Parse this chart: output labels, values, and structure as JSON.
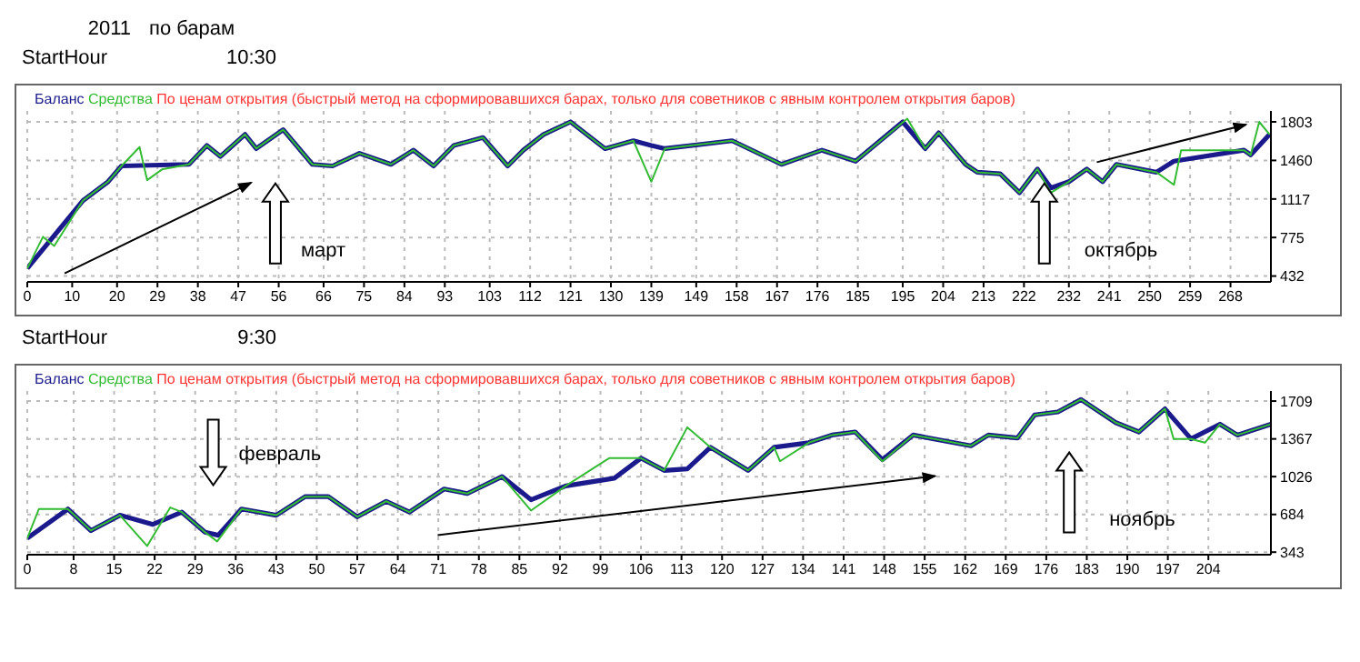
{
  "chart_data": [
    {
      "type": "line",
      "subtitle": "По ценам открытия (быстрый метод на сформировавшихся барах, только для советников с явным контролем открытия баров)",
      "xlim": [
        0,
        277
      ],
      "xticks": [
        0,
        10,
        20,
        29,
        38,
        47,
        56,
        66,
        75,
        84,
        93,
        103,
        112,
        121,
        130,
        139,
        149,
        158,
        167,
        176,
        185,
        195,
        204,
        213,
        222,
        232,
        241,
        250,
        259,
        268
      ],
      "ylim": [
        380,
        1900
      ],
      "yticks": [
        432,
        775,
        1117,
        1460,
        1803
      ],
      "grid": true,
      "legend": "top left",
      "line_style": "solid",
      "marker": "none",
      "series": [
        {
          "name": "Баланс",
          "color": "#1a1a8c",
          "x": [
            0,
            12.4,
            18,
            21,
            36,
            40,
            43,
            48.5,
            51,
            57,
            63.5,
            68,
            74,
            81,
            86,
            90.5,
            95,
            101.5,
            107,
            110.5,
            115,
            121,
            128.7,
            135,
            139,
            142,
            157,
            168,
            177,
            184.5,
            195,
            200,
            203,
            209,
            211.6,
            216.7,
            221,
            225,
            228,
            232,
            236,
            239.5,
            242.6,
            251.5,
            255.4,
            271,
            272.5,
            276.7
          ],
          "values": [
            500,
            1103,
            1271,
            1411,
            1425,
            1593,
            1495,
            1691,
            1565,
            1733,
            1425,
            1411,
            1523,
            1425,
            1551,
            1411,
            1593,
            1663,
            1411,
            1551,
            1691,
            1803,
            1565,
            1635,
            1593,
            1565,
            1635,
            1425,
            1551,
            1453,
            1803,
            1565,
            1705,
            1425,
            1355,
            1341,
            1173,
            1383,
            1215,
            1271,
            1383,
            1271,
            1425,
            1355,
            1453,
            1551,
            1509,
            1691
          ]
        },
        {
          "name": "Средства",
          "color": "#33bb33",
          "x": [
            0,
            3.5,
            6,
            12.4,
            18,
            21,
            25,
            26.7,
            30,
            36,
            40,
            43,
            48.5,
            51,
            57,
            63.5,
            68,
            74,
            81,
            86,
            90.5,
            95,
            101.5,
            107,
            110.5,
            115,
            121,
            128.7,
            135,
            139,
            142,
            157,
            168,
            177,
            184.5,
            196,
            200,
            203,
            209,
            211.6,
            216.7,
            221,
            225,
            228,
            232,
            236,
            239.5,
            242.6,
            251.5,
            255.4,
            257,
            271,
            272.5,
            274.4,
            276.7
          ],
          "values": [
            500,
            781,
            700,
            1103,
            1271,
            1411,
            1579,
            1285,
            1380,
            1425,
            1593,
            1495,
            1691,
            1565,
            1733,
            1425,
            1411,
            1523,
            1425,
            1551,
            1411,
            1593,
            1663,
            1411,
            1551,
            1691,
            1803,
            1565,
            1635,
            1271,
            1565,
            1635,
            1425,
            1551,
            1453,
            1831,
            1565,
            1705,
            1425,
            1355,
            1341,
            1173,
            1383,
            1173,
            1271,
            1383,
            1271,
            1425,
            1355,
            1243,
            1551,
            1551,
            1509,
            1803,
            1691
          ]
        }
      ],
      "annotations": [
        "2011",
        "по барам",
        "StartHour",
        "10:30",
        "март",
        "октябрь"
      ]
    },
    {
      "type": "line",
      "subtitle": "По ценам открытия (быстрый метод на сформировавшихся барах, только для советников с явным контролем открытия баров)",
      "xlim": [
        0,
        214.8
      ],
      "xticks": [
        0,
        8,
        15,
        22,
        29,
        36,
        43,
        50,
        57,
        64,
        71,
        78,
        85,
        92,
        99,
        106,
        113,
        120,
        127,
        134,
        141,
        148,
        155,
        162,
        169,
        176,
        183,
        190,
        197,
        204
      ],
      "ylim": [
        320,
        1800
      ],
      "yticks": [
        343,
        684,
        1026,
        1367,
        1709
      ],
      "grid": true,
      "legend": "top left",
      "line_style": "solid",
      "marker": "none",
      "series": [
        {
          "name": "Баланс",
          "color": "#1a1a8c",
          "x": [
            0,
            7,
            11,
            16,
            21.7,
            26.7,
            30.7,
            33,
            37,
            43,
            48,
            52,
            57,
            62,
            66,
            72,
            76,
            82,
            87,
            93,
            101.4,
            106,
            110,
            114,
            118,
            124.5,
            129,
            135,
            139,
            143,
            147.7,
            153,
            163,
            166,
            171,
            174,
            178,
            182,
            188,
            192,
            196.5,
            201,
            206,
            209,
            214.8
          ],
          "values": [
            468,
            733,
            538,
            677,
            594,
            705,
            524,
            496,
            733,
            677,
            845,
            845,
            663,
            803,
            705,
            914,
            873,
            1026,
            817,
            942,
            1012,
            1193,
            1082,
            1096,
            1291,
            1082,
            1291,
            1333,
            1402,
            1430,
            1179,
            1402,
            1305,
            1402,
            1375,
            1584,
            1611,
            1723,
            1514,
            1430,
            1639,
            1367,
            1500,
            1402,
            1500
          ]
        },
        {
          "name": "Средства",
          "color": "#33bb33",
          "x": [
            0,
            2,
            7,
            11,
            16,
            20.7,
            24.7,
            26.7,
            30.7,
            32.8,
            37,
            43,
            48,
            52,
            57,
            62,
            66,
            72,
            76,
            82,
            87,
            93,
            100.5,
            106,
            110,
            114,
            118,
            124.5,
            129,
            130,
            135,
            139,
            143,
            147.7,
            153,
            163,
            166,
            171,
            174,
            178,
            182,
            188,
            192,
            196.5,
            198,
            201,
            203.4,
            206,
            209,
            214.8
          ],
          "values": [
            468,
            733,
            733,
            538,
            677,
            399,
            747,
            705,
            524,
            440,
            733,
            677,
            845,
            845,
            663,
            803,
            705,
            914,
            873,
            1026,
            719,
            942,
            1193,
            1193,
            1082,
            1472,
            1291,
            1082,
            1291,
            1165,
            1333,
            1402,
            1430,
            1165,
            1402,
            1305,
            1402,
            1375,
            1584,
            1611,
            1723,
            1514,
            1430,
            1639,
            1367,
            1367,
            1333,
            1500,
            1402,
            1500
          ]
        }
      ],
      "annotations": [
        "StartHour",
        "9:30",
        "февраль",
        "ноябрь"
      ]
    }
  ]
}
